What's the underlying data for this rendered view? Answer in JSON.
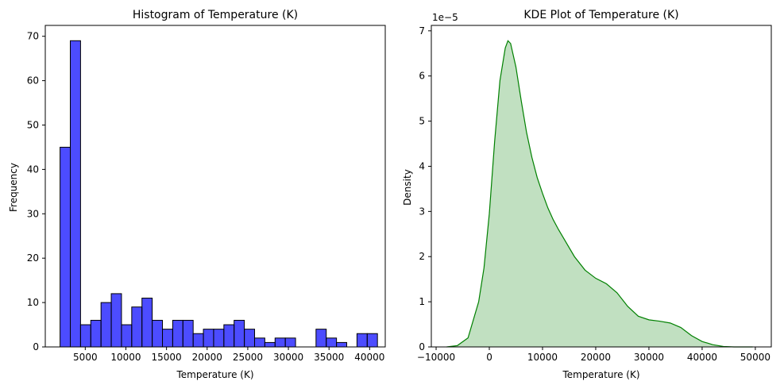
{
  "chart_data": [
    {
      "type": "bar",
      "title": "Histogram of Temperature (K)",
      "xlabel": "Temperature (K)",
      "ylabel": "Frequency",
      "xlim": [
        80,
        41920
      ],
      "ylim": [
        0,
        72.45
      ],
      "xticks": [
        5000,
        10000,
        15000,
        20000,
        25000,
        30000,
        35000,
        40000
      ],
      "xtick_labels": [
        "5000",
        "10000",
        "15000",
        "20000",
        "25000",
        "30000",
        "35000",
        "40000"
      ],
      "yticks": [
        0,
        10,
        20,
        30,
        40,
        50,
        60,
        70
      ],
      "ytick_labels": [
        "0",
        "10",
        "20",
        "30",
        "40",
        "50",
        "60",
        "70"
      ],
      "bin_edges": [
        1900,
        3160,
        4420,
        5680,
        6940,
        8200,
        9460,
        10720,
        11980,
        13240,
        14500,
        15760,
        17020,
        18280,
        19540,
        20800,
        22060,
        23320,
        24580,
        25840,
        27100,
        28360,
        29620,
        30880,
        32140,
        33400,
        34660,
        35920,
        37180,
        38440,
        39700,
        40960
      ],
      "values": [
        45,
        69,
        5,
        6,
        10,
        12,
        5,
        9,
        11,
        6,
        4,
        6,
        6,
        3,
        4,
        4,
        5,
        6,
        4,
        2,
        1,
        2,
        2,
        0,
        0,
        4,
        2,
        1,
        0,
        3,
        3
      ],
      "bar_color": "#0000ff",
      "edge_color": "#000000"
    },
    {
      "type": "area",
      "title": "KDE Plot of Temperature (K)",
      "xlabel": "Temperature (K)",
      "ylabel": "Density",
      "y_offset_label": "1e−5",
      "xlim": [
        -10900,
        53000
      ],
      "ylim": [
        0,
        7.12
      ],
      "y_unit_exponent": -5,
      "xticks": [
        -10000,
        0,
        10000,
        20000,
        30000,
        40000,
        50000
      ],
      "xtick_labels": [
        "−10000",
        "0",
        "10000",
        "20000",
        "30000",
        "40000",
        "50000"
      ],
      "yticks": [
        0,
        1,
        2,
        3,
        4,
        5,
        6,
        7
      ],
      "ytick_labels": [
        "0",
        "1",
        "2",
        "3",
        "4",
        "5",
        "6",
        "7"
      ],
      "x": [
        -8000,
        -6000,
        -4000,
        -2000,
        -1000,
        0,
        1000,
        2000,
        3000,
        3500,
        4000,
        5000,
        6000,
        7000,
        8000,
        9000,
        10000,
        11000,
        12000,
        13000,
        14000,
        16000,
        18000,
        20000,
        22000,
        24000,
        26000,
        28000,
        30000,
        32000,
        34000,
        36000,
        38000,
        40000,
        42000,
        44000,
        46000,
        48000,
        49500
      ],
      "y": [
        0.0,
        0.03,
        0.2,
        1.0,
        1.75,
        2.95,
        4.55,
        5.9,
        6.62,
        6.78,
        6.72,
        6.2,
        5.45,
        4.75,
        4.2,
        3.75,
        3.4,
        3.08,
        2.82,
        2.6,
        2.4,
        2.0,
        1.7,
        1.52,
        1.4,
        1.2,
        0.9,
        0.68,
        0.6,
        0.57,
        0.53,
        0.43,
        0.25,
        0.12,
        0.05,
        0.01,
        0.0,
        0.0,
        0.0
      ],
      "line_color": "#008000",
      "fill_color": "#c1e0c1"
    }
  ]
}
